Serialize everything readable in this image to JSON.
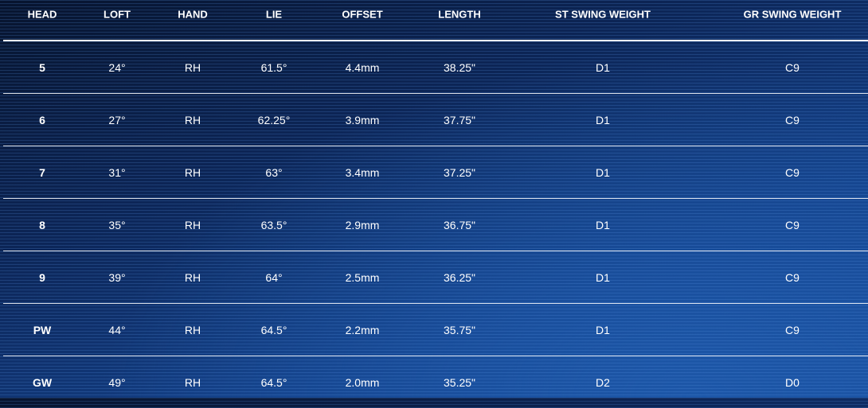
{
  "table": {
    "headers": [
      "HEAD",
      "LOFT",
      "HAND",
      "LIE",
      "OFFSET",
      "LENGTH",
      "ST SWING WEIGHT",
      "GR SWING WEIGHT"
    ],
    "rows": [
      [
        "5",
        "24°",
        "RH",
        "61.5°",
        "4.4mm",
        "38.25\"",
        "D1",
        "C9"
      ],
      [
        "6",
        "27°",
        "RH",
        "62.25°",
        "3.9mm",
        "37.75\"",
        "D1",
        "C9"
      ],
      [
        "7",
        "31°",
        "RH",
        "63°",
        "3.4mm",
        "37.25\"",
        "D1",
        "C9"
      ],
      [
        "8",
        "35°",
        "RH",
        "63.5°",
        "2.9mm",
        "36.75\"",
        "D1",
        "C9"
      ],
      [
        "9",
        "39°",
        "RH",
        "64°",
        "2.5mm",
        "36.25\"",
        "D1",
        "C9"
      ],
      [
        "PW",
        "44°",
        "RH",
        "64.5°",
        "2.2mm",
        "35.75\"",
        "D1",
        "C9"
      ],
      [
        "GW",
        "49°",
        "RH",
        "64.5°",
        "2.0mm",
        "35.25\"",
        "D2",
        "D0"
      ]
    ]
  },
  "colors": {
    "background_dark": "#07142e",
    "background_light": "#1a4f9e",
    "text": "#ffffff"
  }
}
